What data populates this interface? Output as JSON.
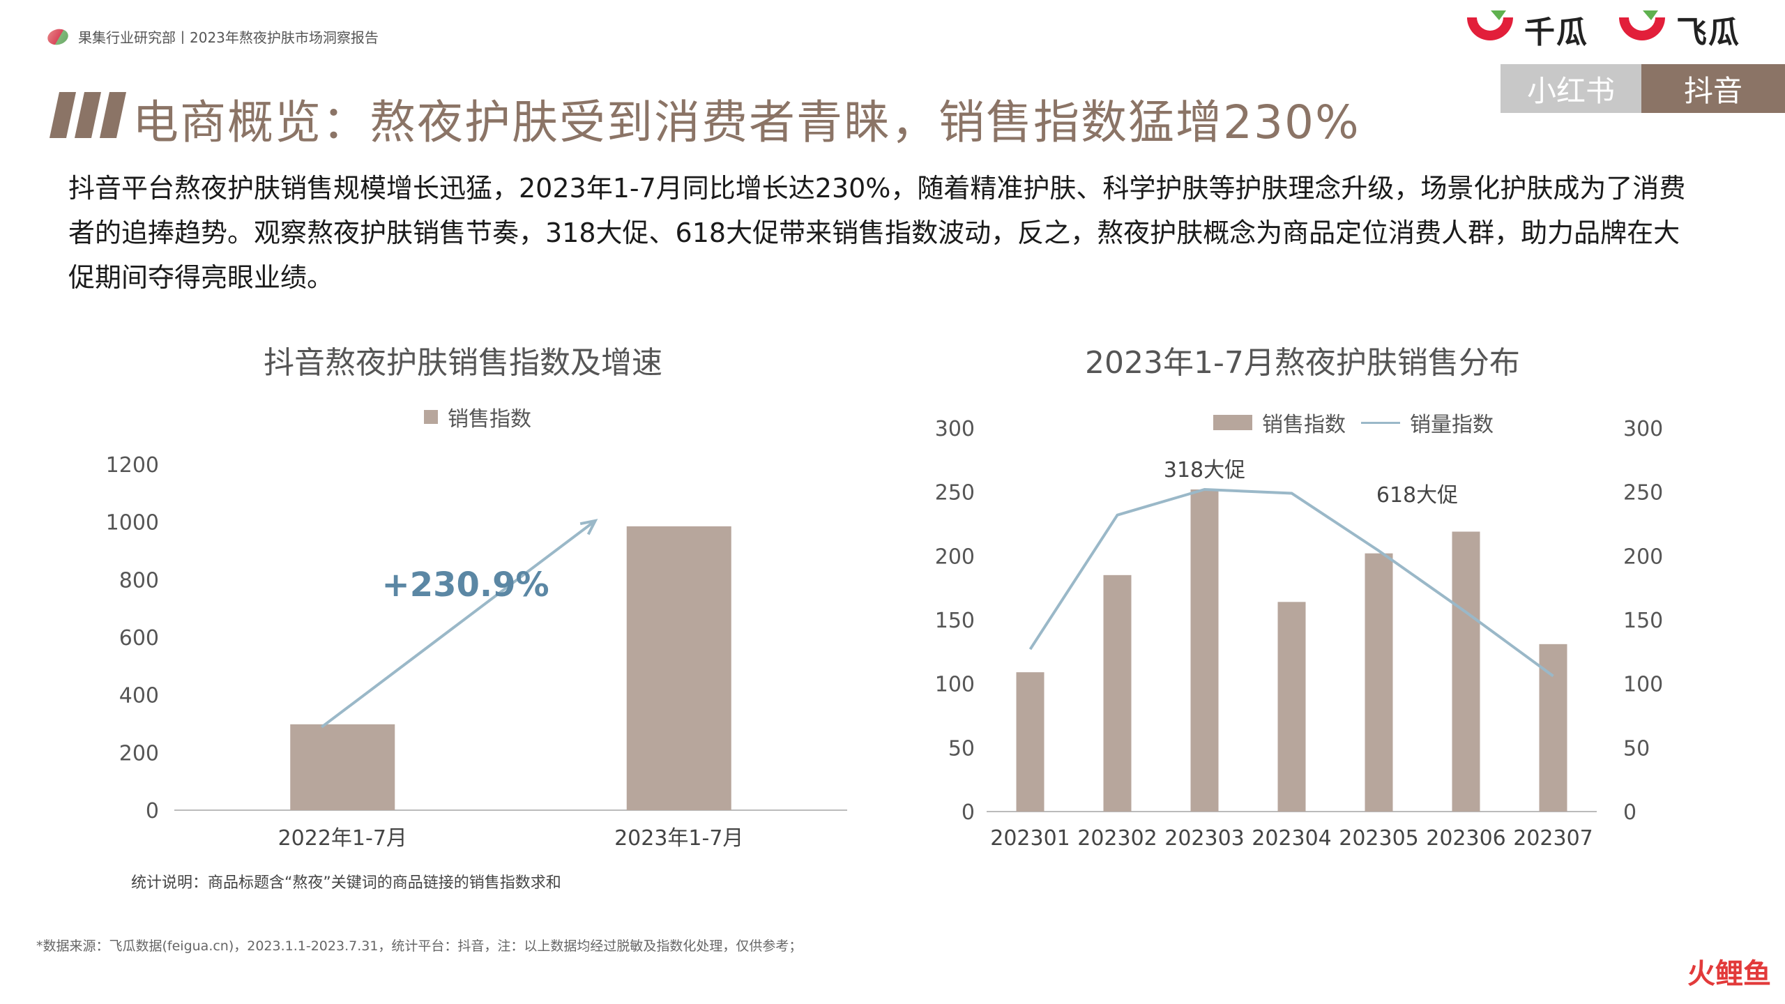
{
  "header": {
    "breadcrumb": "果集行业研究部丨2023年熬夜护肤市场洞察报告",
    "logo_left": "千瓜",
    "logo_right": "飞瓜",
    "tab_xhs": "小红书",
    "tab_dy": "抖音"
  },
  "title": "电商概览：熬夜护肤受到消费者青睐，销售指数猛增230%",
  "summary": "抖音平台熬夜护肤销售规模增长迅猛，2023年1-7月同比增长达230%，随着精准护肤、科学护肤等护肤理念升级，场景化护肤成为了消费者的追捧趋势。观察熬夜护肤销售节奏，318大促、618大促带来销售指数波动，反之，熬夜护肤概念为商品定位消费人群，助力品牌在大促期间夺得亮眼业绩。",
  "colors": {
    "bar": "#b7a69c",
    "line": "#9ab8c8",
    "accent": "#8b7466",
    "growth": "#5b87a4"
  },
  "chart_data": [
    {
      "type": "bar",
      "title": "抖音熬夜护肤销售指数及增速",
      "legend": "销售指数",
      "categories": [
        "2022年1-7月",
        "2023年1-7月"
      ],
      "series": [
        {
          "name": "销售指数",
          "values": [
            298,
            985
          ]
        }
      ],
      "ylim": [
        0,
        1200
      ],
      "yticks": [
        "0",
        "200",
        "400",
        "600",
        "800",
        "1000",
        "1200"
      ],
      "annotation": "+230.9%",
      "grid": false
    },
    {
      "type": "bar",
      "title": "2023年1-7月熬夜护肤销售分布",
      "categories": [
        "202301",
        "202302",
        "202303",
        "202304",
        "202305",
        "202306",
        "202307"
      ],
      "series": [
        {
          "name": "销售指数",
          "type": "bar",
          "values": [
            109,
            185,
            252,
            164,
            202,
            219,
            131
          ]
        },
        {
          "name": "销量指数",
          "type": "line",
          "values": [
            127,
            232,
            252,
            249,
            204,
            156,
            106
          ]
        }
      ],
      "ylim": [
        0,
        300
      ],
      "yticks": [
        "0",
        "50",
        "100",
        "150",
        "200",
        "250",
        "300"
      ],
      "y2ticks": [
        "0",
        "50",
        "100",
        "150",
        "200",
        "250",
        "300"
      ],
      "annotations": [
        {
          "label": "318大促",
          "category": "202303"
        },
        {
          "label": "618大促",
          "category": "202305"
        }
      ],
      "grid": false
    }
  ],
  "footer": {
    "note": "统计说明：商品标题含“熬夜”关键词的商品链接的销售指数求和",
    "source": "*数据来源：飞瓜数据(feigua.cn)，2023.1.1-2023.7.31，统计平台：抖音，注：以上数据均经过脱敏及指数化处理，仅供参考；",
    "corner_logo": "火鲤鱼"
  }
}
